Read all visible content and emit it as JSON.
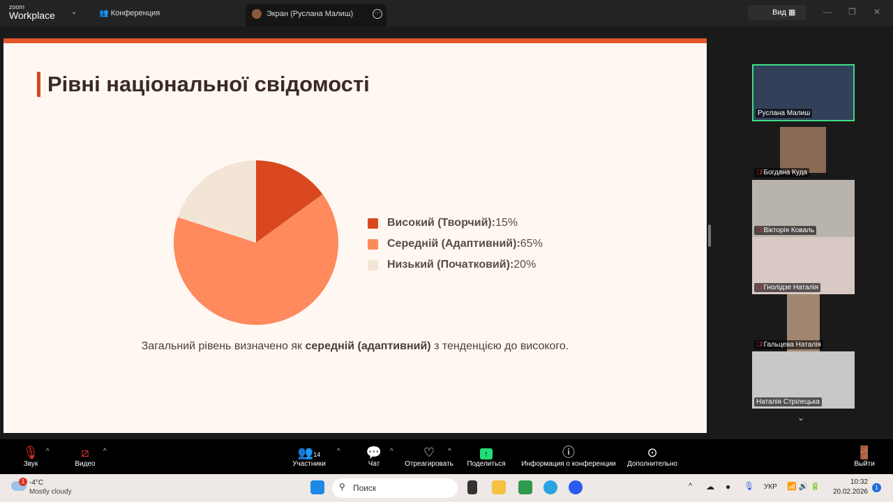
{
  "topbar": {
    "logo_small": "zoom",
    "logo_big": "Workplace",
    "conference_label": "Конференция",
    "screen_tab": "Экран (Руслана Малиш)",
    "view_label": "Вид"
  },
  "slide": {
    "title": "Рівні національної свідомості",
    "summary_pre": "Загальний рівень визначено як ",
    "summary_bold": "середній (адаптивний)",
    "summary_post": " з тенденцією до високого.",
    "legend": [
      {
        "label": "Високий (Творчий):",
        "value": "15%",
        "color": "#d9481e"
      },
      {
        "label": "Середній (Адаптивний):",
        "value": "65%",
        "color": "#fe8a5e"
      },
      {
        "label": "Низький (Початковий):",
        "value": "20%",
        "color": "#f3e5d6"
      }
    ]
  },
  "chart_data": {
    "type": "pie",
    "categories": [
      "Високий (Творчий)",
      "Середній (Адаптивний)",
      "Низький (Початковий)"
    ],
    "values": [
      15,
      65,
      20
    ],
    "colors": [
      "#d9481e",
      "#fe8a5e",
      "#f3e5d6"
    ],
    "legend": "right"
  },
  "participants": [
    {
      "name": "Руслана Малиш",
      "active": true,
      "muted": false
    },
    {
      "name": "Богдана Куда",
      "muted": true
    },
    {
      "name": "Вікторія Коваль",
      "muted": true
    },
    {
      "name": "Гнолідзе Наталія",
      "muted": true
    },
    {
      "name": "Гальцева Наталія",
      "muted": true
    },
    {
      "name": "Наталія Стрілецька",
      "muted": false
    }
  ],
  "toolbar": {
    "audio": "Звук",
    "video": "Видео",
    "participants": "Участники",
    "participants_count": "14",
    "chat": "Чат",
    "react": "Отреагировать",
    "share": "Поделиться",
    "info": "Информация о конференции",
    "more": "Дополнительно",
    "leave": "Выйти"
  },
  "taskbar": {
    "weather_temp": "-4°C",
    "weather_desc": "Mostly cloudy",
    "weather_badge": "1",
    "search_placeholder": "Поиск",
    "lang": "УКР",
    "time": "10:32",
    "date": "20.02.2026",
    "notif": "1"
  }
}
